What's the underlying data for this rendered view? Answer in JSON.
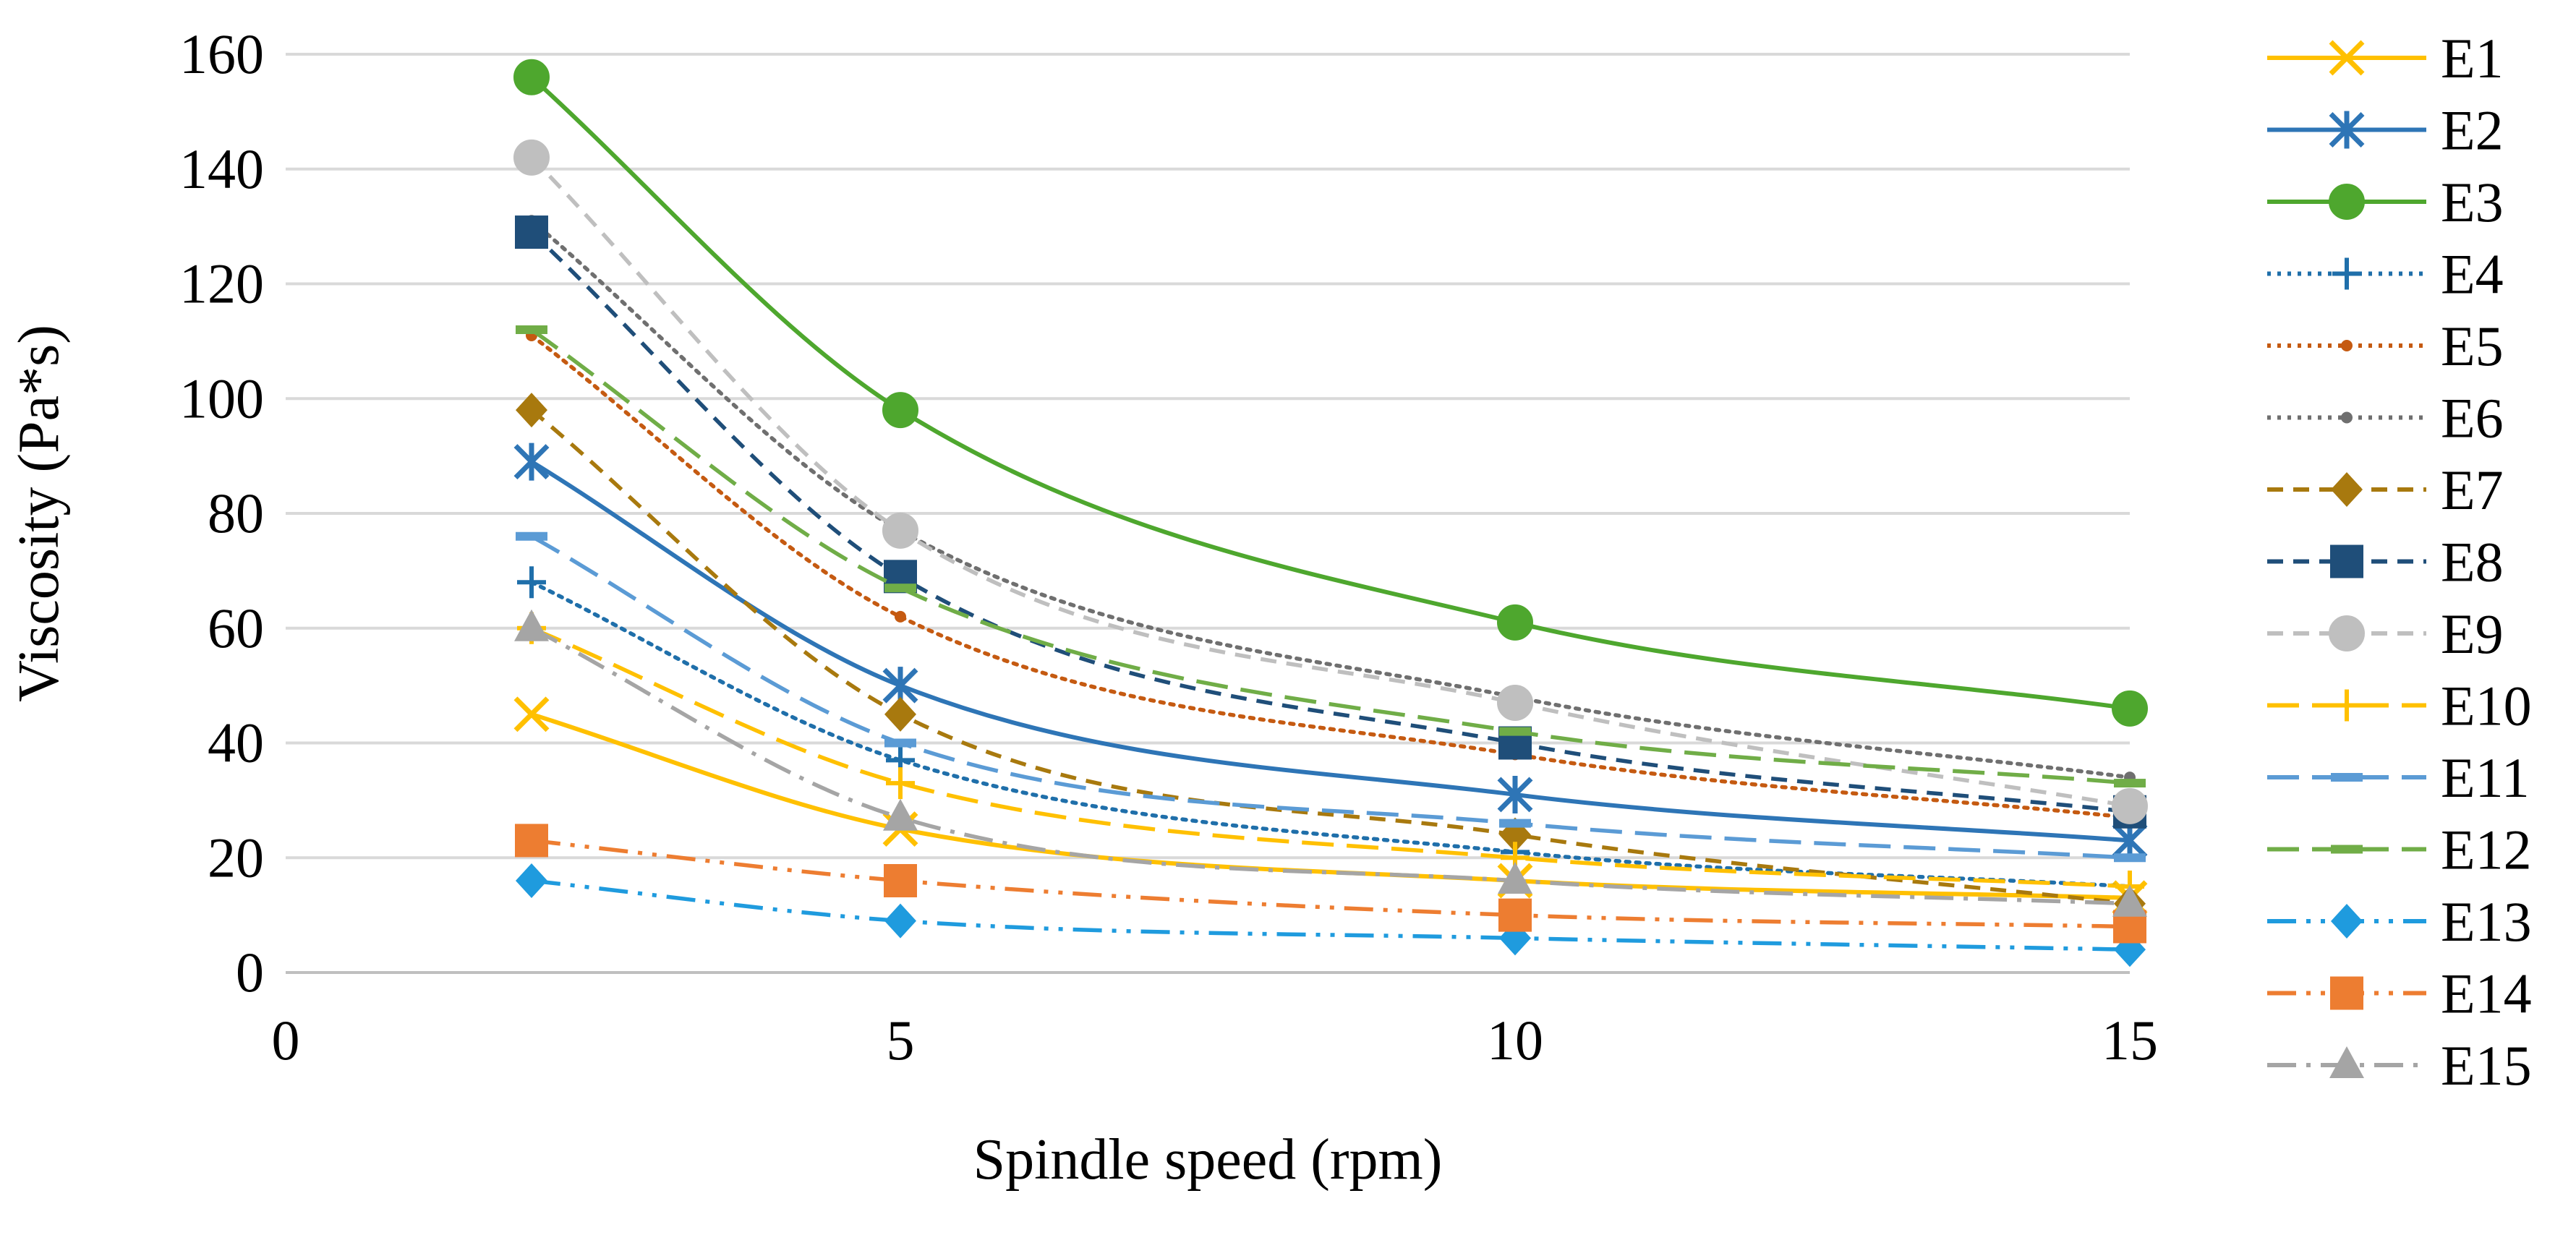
{
  "chart_data": {
    "type": "line",
    "title": "",
    "xlabel": "Spindle speed (rpm)",
    "ylabel": "Viscosity (Pa*s)",
    "xlim": [
      0,
      15
    ],
    "ylim": [
      0,
      160
    ],
    "x_ticks": [
      0,
      5,
      10,
      15
    ],
    "y_ticks": [
      0,
      20,
      40,
      60,
      80,
      100,
      120,
      140,
      160
    ],
    "grid": "horizontal",
    "legend_position": "right",
    "x": [
      2,
      5,
      10,
      15
    ],
    "series": [
      {
        "name": "E1",
        "values": [
          45,
          25,
          16,
          13
        ],
        "color": "#FFC000",
        "dash": "solid",
        "marker": "x"
      },
      {
        "name": "E2",
        "values": [
          89,
          50,
          31,
          23
        ],
        "color": "#2E75B6",
        "dash": "solid",
        "marker": "star"
      },
      {
        "name": "E3",
        "values": [
          156,
          98,
          61,
          46
        ],
        "color": "#4EA72E",
        "dash": "solid",
        "marker": "circle"
      },
      {
        "name": "E4",
        "values": [
          68,
          37,
          21,
          15
        ],
        "color": "#1F6FAA",
        "dash": "dot",
        "marker": "plus"
      },
      {
        "name": "E5",
        "values": [
          111,
          62,
          38,
          27
        ],
        "color": "#C55A11",
        "dash": "dot",
        "marker": "smalldot"
      },
      {
        "name": "E6",
        "values": [
          131,
          77,
          48,
          34
        ],
        "color": "#6F6F6F",
        "dash": "dot",
        "marker": "smalldot"
      },
      {
        "name": "E7",
        "values": [
          98,
          45,
          24,
          12
        ],
        "color": "#A8790E",
        "dash": "dash",
        "marker": "diamond"
      },
      {
        "name": "E8",
        "values": [
          129,
          69,
          40,
          28
        ],
        "color": "#1F4E79",
        "dash": "dash",
        "marker": "square"
      },
      {
        "name": "E9",
        "values": [
          142,
          77,
          47,
          29
        ],
        "color": "#BFBFBF",
        "dash": "dash",
        "marker": "circle"
      },
      {
        "name": "E10",
        "values": [
          60,
          33,
          20,
          15
        ],
        "color": "#FFC000",
        "dash": "longdash",
        "marker": "plus"
      },
      {
        "name": "E11",
        "values": [
          76,
          40,
          26,
          20
        ],
        "color": "#5B9BD5",
        "dash": "longdash",
        "marker": "dash"
      },
      {
        "name": "E12",
        "values": [
          112,
          67,
          42,
          33
        ],
        "color": "#70AD47",
        "dash": "longdash",
        "marker": "dash"
      },
      {
        "name": "E13",
        "values": [
          16,
          9,
          6,
          4
        ],
        "color": "#1F9BDE",
        "dash": "dashdotdot",
        "marker": "diamond"
      },
      {
        "name": "E14",
        "values": [
          23,
          16,
          10,
          8
        ],
        "color": "#ED7D31",
        "dash": "dashdotdot",
        "marker": "square"
      },
      {
        "name": "E15",
        "values": [
          60,
          27,
          16,
          12
        ],
        "color": "#A5A5A5",
        "dash": "dashdot",
        "marker": "triangle"
      }
    ]
  }
}
